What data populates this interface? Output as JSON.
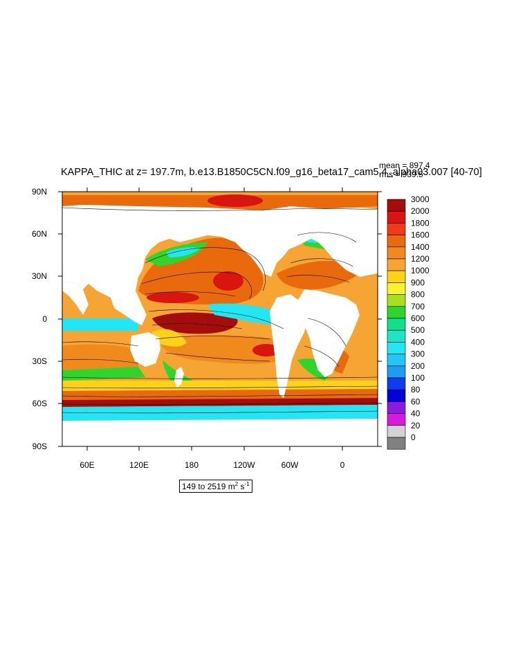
{
  "title": "KAPPA_THIC at z= 197.7m, b.e13.B1850C5CN.f09_g16_beta17_cam5.4_alpha03.007 [40-70]",
  "stats": {
    "mean": "mean = 897.4",
    "rms": "rms = 939.5"
  },
  "axes": {
    "lat_labels": [
      "90N",
      "60N",
      "30N",
      "0",
      "30S",
      "60S",
      "90S"
    ],
    "lon_labels": [
      "60E",
      "120E",
      "180",
      "120W",
      "60W",
      "0"
    ]
  },
  "legend": {
    "levels": [
      "3000",
      "2000",
      "1800",
      "1600",
      "1400",
      "1200",
      "1000",
      "900",
      "800",
      "700",
      "600",
      "500",
      "400",
      "300",
      "200",
      "100",
      "80",
      "60",
      "40",
      "20",
      "0"
    ],
    "colors": [
      "#a50d0d",
      "#d9150f",
      "#f23a16",
      "#e86a0c",
      "#f08a1c",
      "#f6a433",
      "#ffd21a",
      "#fff22a",
      "#a8e01e",
      "#2fd52c",
      "#0fe08a",
      "#1fe3c8",
      "#23e6f5",
      "#23c6f5",
      "#1f9bf0",
      "#0d3cf2",
      "#0000d8",
      "#8a1ce0",
      "#d81adc",
      "#d3d3d3",
      "#808080"
    ]
  },
  "range": {
    "prefix": "149 to 2519 m",
    "exp1": "2",
    "mid": " s",
    "exp2": "-1"
  },
  "colors": {
    "land": "#ffffff",
    "frame": "#000000",
    "contour": "#000000"
  }
}
